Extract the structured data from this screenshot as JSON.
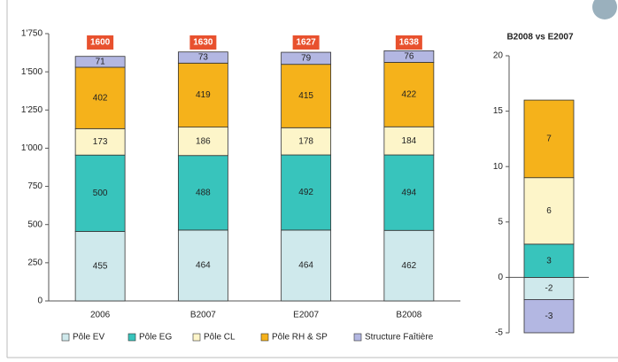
{
  "chart_data": [
    {
      "type": "bar",
      "stacked": true,
      "categories": [
        "2006",
        "B2007",
        "E2007",
        "B2008"
      ],
      "series": [
        {
          "name": "Pôle EV",
          "color": "#cfe9ec",
          "values": [
            455,
            464,
            464,
            462
          ]
        },
        {
          "name": "Pôle EG",
          "color": "#38c4bc",
          "values": [
            500,
            488,
            492,
            494
          ]
        },
        {
          "name": "Pôle CL",
          "color": "#fdf5c9",
          "values": [
            173,
            186,
            178,
            184
          ]
        },
        {
          "name": "Pôle RH & SP",
          "color": "#f5b21b",
          "values": [
            402,
            419,
            415,
            422
          ]
        },
        {
          "name": "Structure Faîtière",
          "color": "#b3b7e2",
          "values": [
            71,
            73,
            79,
            76
          ]
        }
      ],
      "totals": [
        1600,
        1630,
        1627,
        1638
      ],
      "total_color": "#e8512e",
      "ylim": [
        0,
        1750
      ],
      "yticks": [
        0,
        250,
        500,
        750,
        {
          "value": 1000,
          "label": "1'000"
        },
        {
          "value": 1250,
          "label": "1'250"
        },
        {
          "value": 1500,
          "label": "1'500"
        },
        {
          "value": 1750,
          "label": "1'750"
        }
      ],
      "legend": "bottom"
    },
    {
      "type": "bar",
      "stacked": true,
      "title": "B2008 vs E2007",
      "categories": [
        null
      ],
      "series": [
        {
          "name": "Pôle EV",
          "color": "#cfe9ec",
          "values": [
            -2
          ]
        },
        {
          "name": "Pôle EG",
          "color": "#38c4bc",
          "values": [
            3
          ]
        },
        {
          "name": "Pôle CL",
          "color": "#fdf5c9",
          "values": [
            6
          ]
        },
        {
          "name": "Pôle RH & SP",
          "color": "#f5b21b",
          "values": [
            7
          ]
        },
        {
          "name": "Structure Faîtière",
          "color": "#b3b7e2",
          "values": [
            -3
          ]
        }
      ],
      "ylim": [
        -5,
        20
      ],
      "yticks": [
        -5,
        0,
        5,
        10,
        15,
        20
      ]
    }
  ]
}
